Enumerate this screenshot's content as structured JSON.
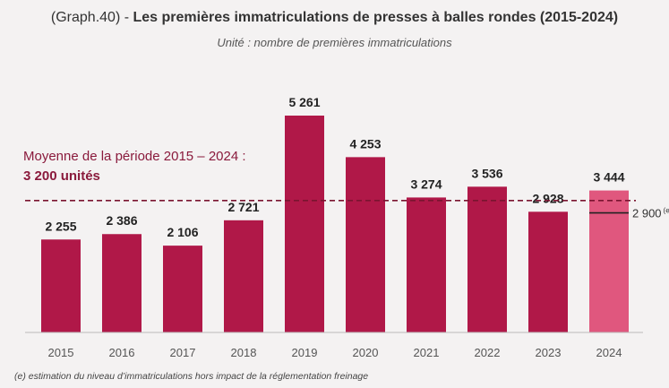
{
  "header": {
    "graph_ref": "(Graph.40)",
    "separator": " - ",
    "title": "Les premières immatriculations de presses à balles rondes (2015-2024)",
    "subtitle": "Unité : nombre de premières immatriculations"
  },
  "average": {
    "label": "Moyenne de la période 2015 – 2024 :",
    "value_text": "3 200 unités",
    "value": 3200
  },
  "estimate": {
    "label": "2 900",
    "superscript": "(e)",
    "value": 2900
  },
  "footnote": "(e) estimation du niveau d’immatriculations hors impact de la réglementation freinage",
  "colors": {
    "bar": "#b01848",
    "bar_highlight": "#e0577e",
    "average_line": "#7a1430",
    "axis": "#bbbbbb",
    "text": "#333333"
  },
  "chart_data": {
    "type": "bar",
    "categories": [
      "2015",
      "2016",
      "2017",
      "2018",
      "2019",
      "2020",
      "2021",
      "2022",
      "2023",
      "2024"
    ],
    "values": [
      2255,
      2386,
      2106,
      2721,
      5261,
      4253,
      3274,
      3536,
      2928,
      3444
    ],
    "labels": [
      "2 255",
      "2 386",
      "2 106",
      "2 721",
      "5 261",
      "4 253",
      "3 274",
      "3 536",
      "2 928",
      "3 444"
    ],
    "highlight_index": 9,
    "title": "Les premières immatriculations de presses à balles rondes (2015-2024)",
    "ylabel": "Unité : nombre de premières immatriculations",
    "ylim": [
      0,
      5261
    ],
    "grid": false
  }
}
